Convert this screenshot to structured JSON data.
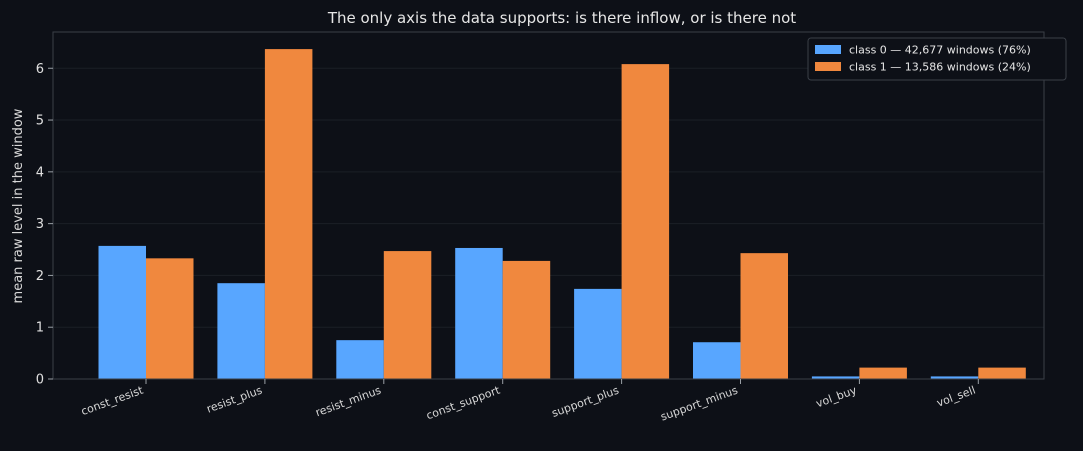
{
  "chart_data": {
    "type": "bar",
    "title": "The only axis the data supports: is there inflow, or is there not",
    "xlabel": "",
    "ylabel": "mean raw level in the window",
    "ylim": [
      0,
      6.7
    ],
    "yticks": [
      0,
      1,
      2,
      3,
      4,
      5,
      6
    ],
    "grid": true,
    "legend_position": "top-right",
    "categories": [
      "const_resist",
      "resist_plus",
      "resist_minus",
      "const_support",
      "support_plus",
      "support_minus",
      "vol_buy",
      "vol_sell"
    ],
    "series": [
      {
        "name": "class 0 — 42,677 windows (76%)",
        "color": "#58a6ff",
        "values": [
          2.57,
          1.85,
          0.75,
          2.53,
          1.74,
          0.71,
          0.05,
          0.05
        ]
      },
      {
        "name": "class 1 — 13,586 windows (24%)",
        "color": "#f0883e",
        "values": [
          2.33,
          6.37,
          2.47,
          2.28,
          6.08,
          2.43,
          0.22,
          0.22
        ]
      }
    ]
  },
  "colors": {
    "background": "#0d1017",
    "grid": "#1b1f27",
    "frame": "#3a3f47"
  }
}
